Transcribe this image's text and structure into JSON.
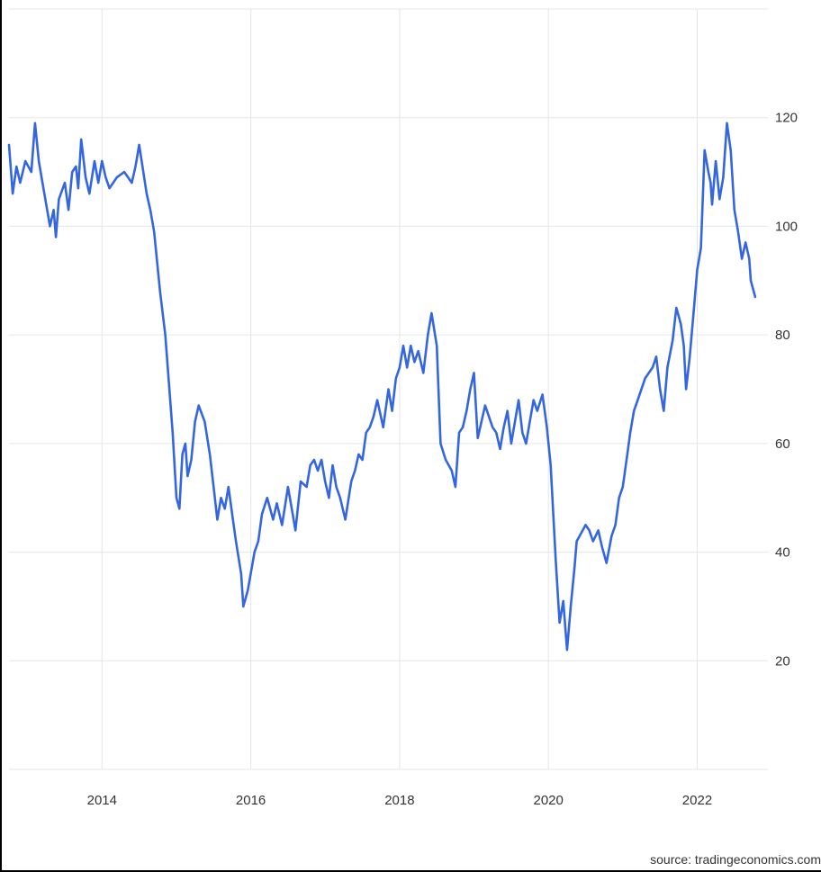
{
  "source": "source: tradingeconomics.com",
  "colors": {
    "line": "#3366e0",
    "grid": "#e6e6e6",
    "text": "#333333"
  },
  "chart_data": {
    "type": "line",
    "title": "",
    "xlabel": "",
    "ylabel": "",
    "xlim": [
      2012.75,
      2022.95
    ],
    "ylim": [
      0,
      140
    ],
    "y_axis_position": "right",
    "grid": true,
    "x_ticks": [
      2014,
      2016,
      2018,
      2020,
      2022
    ],
    "x_tick_labels": [
      "2014",
      "2016",
      "2018",
      "2020",
      "2022"
    ],
    "y_ticks": [
      20,
      40,
      60,
      80,
      100,
      120
    ],
    "y_tick_labels": [
      "20",
      "40",
      "60",
      "80",
      "100",
      "120"
    ],
    "series": [
      {
        "x": [
          2012.75,
          2012.8,
          2012.85,
          2012.9,
          2012.97,
          2013.05,
          2013.1,
          2013.15,
          2013.2,
          2013.3,
          2013.35,
          2013.38,
          2013.42,
          2013.5,
          2013.55,
          2013.6,
          2013.65,
          2013.68,
          2013.72,
          2013.78,
          2013.83,
          2013.9,
          2013.95,
          2014.0,
          2014.05,
          2014.1,
          2014.2,
          2014.3,
          2014.4,
          2014.45,
          2014.5,
          2014.6,
          2014.65,
          2014.7,
          2014.78,
          2014.85,
          2014.9,
          2014.95,
          2015.0,
          2015.04,
          2015.08,
          2015.12,
          2015.15,
          2015.2,
          2015.25,
          2015.3,
          2015.38,
          2015.45,
          2015.5,
          2015.55,
          2015.6,
          2015.65,
          2015.7,
          2015.75,
          2015.8,
          2015.87,
          2015.9,
          2015.96,
          2016.05,
          2016.1,
          2016.15,
          2016.22,
          2016.3,
          2016.35,
          2016.42,
          2016.5,
          2016.55,
          2016.6,
          2016.67,
          2016.75,
          2016.8,
          2016.85,
          2016.9,
          2016.95,
          2017.0,
          2017.05,
          2017.1,
          2017.15,
          2017.2,
          2017.27,
          2017.35,
          2017.4,
          2017.45,
          2017.5,
          2017.55,
          2017.6,
          2017.65,
          2017.7,
          2017.78,
          2017.85,
          2017.9,
          2017.95,
          2018.0,
          2018.05,
          2018.1,
          2018.15,
          2018.2,
          2018.25,
          2018.32,
          2018.38,
          2018.43,
          2018.5,
          2018.55,
          2018.62,
          2018.7,
          2018.75,
          2018.8,
          2018.85,
          2018.9,
          2018.95,
          2019.0,
          2019.05,
          2019.1,
          2019.15,
          2019.25,
          2019.3,
          2019.35,
          2019.4,
          2019.45,
          2019.5,
          2019.55,
          2019.6,
          2019.65,
          2019.7,
          2019.75,
          2019.8,
          2019.85,
          2019.92,
          2019.98,
          2020.03,
          2020.1,
          2020.15,
          2020.2,
          2020.25,
          2020.3,
          2020.35,
          2020.38,
          2020.42,
          2020.5,
          2020.55,
          2020.6,
          2020.67,
          2020.72,
          2020.78,
          2020.85,
          2020.9,
          2020.95,
          2021.0,
          2021.05,
          2021.1,
          2021.15,
          2021.2,
          2021.3,
          2021.4,
          2021.45,
          2021.5,
          2021.55,
          2021.6,
          2021.67,
          2021.72,
          2021.78,
          2021.82,
          2021.85,
          2021.9,
          2021.95,
          2022.0,
          2022.05,
          2022.1,
          2022.15,
          2022.18,
          2022.2,
          2022.25,
          2022.3,
          2022.35,
          2022.4,
          2022.45,
          2022.5,
          2022.55,
          2022.6,
          2022.65,
          2022.7,
          2022.72,
          2022.78
        ],
        "values": [
          115,
          106,
          111,
          108,
          112,
          110,
          119,
          112,
          108,
          100,
          103,
          98,
          105,
          108,
          103,
          110,
          111,
          107,
          116,
          109,
          106,
          112,
          108,
          112,
          109,
          107,
          109,
          110,
          108,
          111,
          115,
          106,
          103,
          99,
          88,
          80,
          71,
          62,
          50,
          48,
          58,
          60,
          54,
          57,
          64,
          67,
          64,
          58,
          52,
          46,
          50,
          48,
          52,
          47,
          42,
          36,
          30,
          33,
          40,
          42,
          47,
          50,
          46,
          49,
          45,
          52,
          48,
          44,
          53,
          52,
          56,
          57,
          55,
          57,
          53,
          50,
          56,
          52,
          50,
          46,
          53,
          55,
          58,
          57,
          62,
          63,
          65,
          68,
          63,
          70,
          66,
          72,
          74,
          78,
          74,
          78,
          75,
          77,
          73,
          80,
          84,
          78,
          60,
          57,
          55,
          52,
          62,
          63,
          66,
          70,
          73,
          61,
          64,
          67,
          63,
          62,
          59,
          63,
          66,
          60,
          64,
          68,
          62,
          60,
          64,
          68,
          66,
          69,
          63,
          56,
          38,
          27,
          31,
          22,
          30,
          37,
          42,
          43,
          45,
          44,
          42,
          44,
          41,
          38,
          43,
          45,
          50,
          52,
          57,
          62,
          66,
          68,
          72,
          74,
          76,
          70,
          66,
          74,
          79,
          85,
          82,
          78,
          70,
          76,
          84,
          92,
          96,
          114,
          110,
          108,
          104,
          112,
          105,
          109,
          119,
          114,
          103,
          99,
          94,
          97,
          94,
          90,
          87
        ]
      }
    ]
  }
}
